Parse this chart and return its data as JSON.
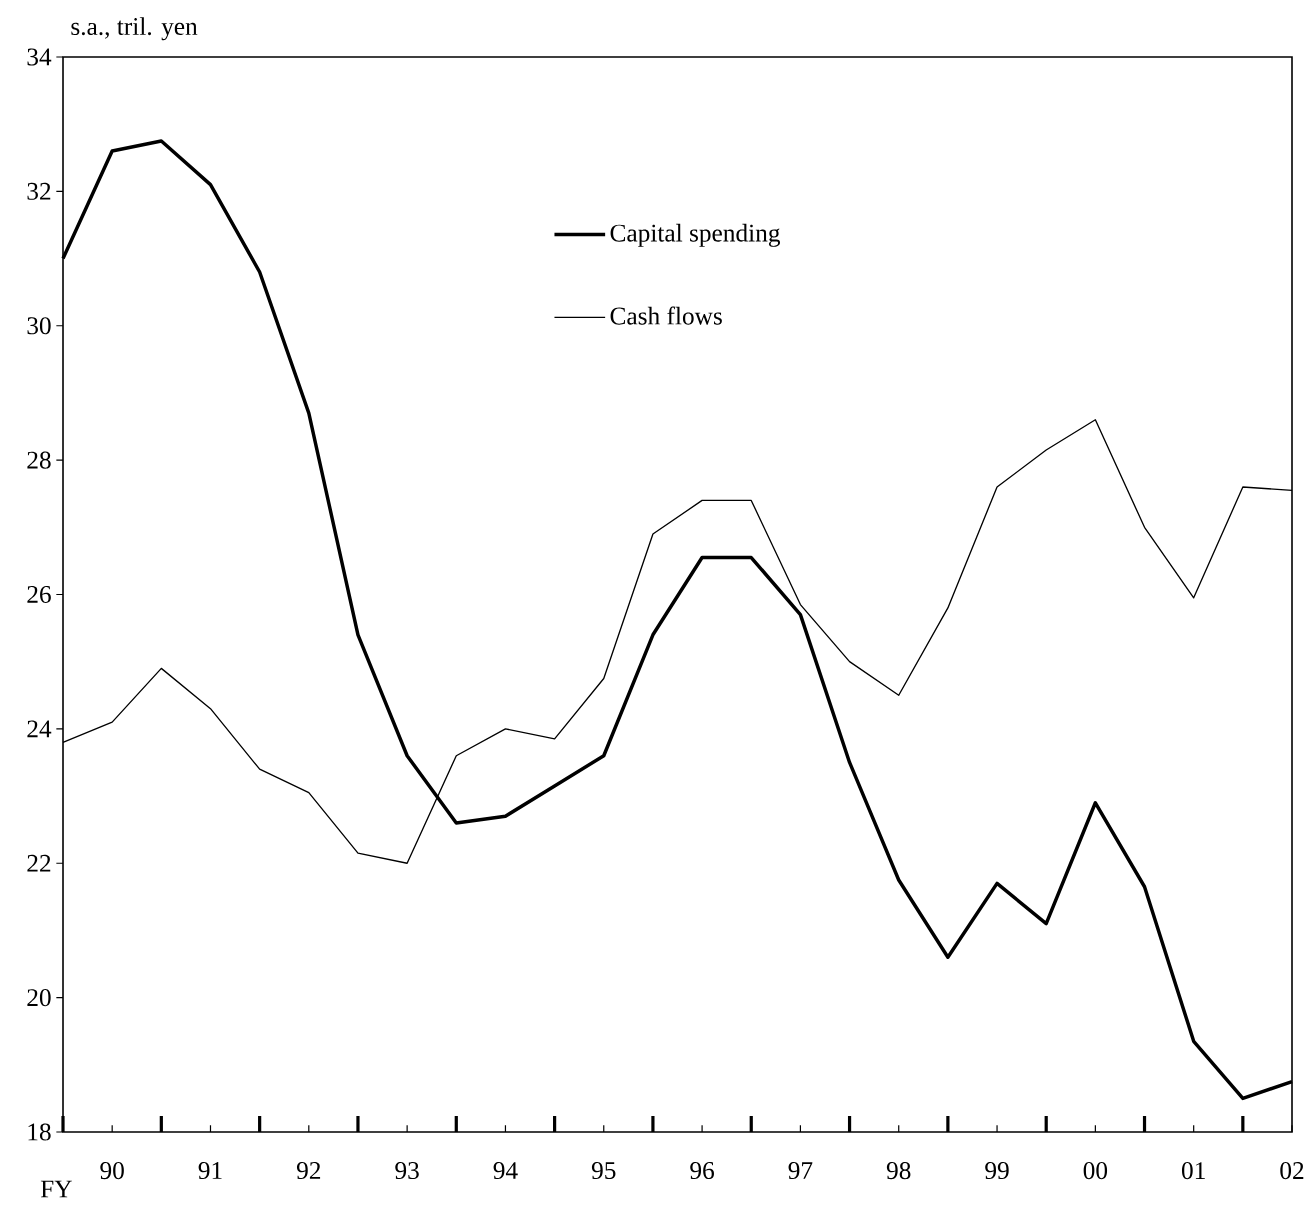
{
  "chart_data": {
    "type": "line",
    "xlabel": "FY",
    "ylabel": "s.a., tril. yen",
    "categories": [
      null,
      "90",
      null,
      "91",
      null,
      "92",
      null,
      "93",
      null,
      "94",
      null,
      "95",
      null,
      "96",
      null,
      "97",
      null,
      "98",
      null,
      "99",
      null,
      "00",
      null,
      "01",
      null,
      "02"
    ],
    "series": [
      {
        "name": "Capital spending",
        "color": "#000000",
        "values": [
          31.0,
          32.6,
          32.75,
          32.1,
          30.8,
          28.7,
          25.4,
          23.6,
          22.6,
          22.7,
          23.15,
          23.6,
          25.4,
          26.55,
          26.55,
          25.7,
          23.5,
          21.75,
          20.6,
          21.7,
          21.1,
          22.9,
          21.65,
          19.35,
          18.5,
          18.75
        ]
      },
      {
        "name": "Cash flows",
        "color": "#000000",
        "values": [
          23.8,
          24.1,
          24.9,
          24.3,
          23.4,
          23.05,
          22.15,
          22.0,
          23.6,
          24.0,
          23.85,
          24.75,
          26.9,
          27.4,
          27.4,
          25.85,
          25.0,
          24.5,
          25.8,
          27.6,
          28.15,
          28.6,
          27.0,
          25.95,
          27.6,
          27.55
        ]
      }
    ],
    "ylim": [
      18,
      34
    ],
    "yticks": [
      18,
      20,
      22,
      24,
      26,
      28,
      30,
      32,
      34
    ],
    "legend": "top",
    "line_style": "solid"
  }
}
